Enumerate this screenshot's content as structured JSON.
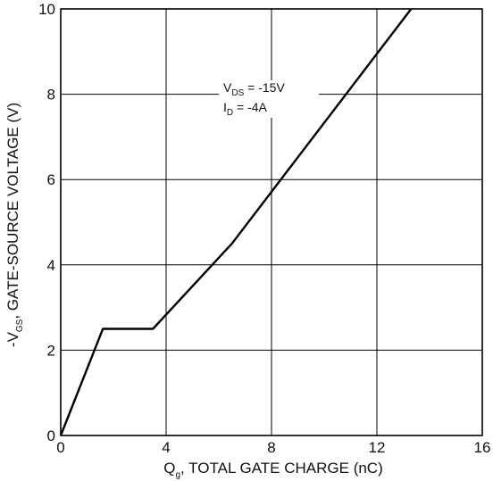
{
  "chart_data": {
    "type": "line",
    "x": [
      0,
      1.6,
      3.5,
      6.5,
      13.3
    ],
    "y": [
      0,
      2.5,
      2.5,
      4.5,
      10
    ],
    "xlim": [
      0,
      16
    ],
    "ylim": [
      0,
      10
    ],
    "xticks": [
      0,
      4,
      8,
      12,
      16
    ],
    "yticks": [
      0,
      2,
      4,
      6,
      8,
      10
    ],
    "grid": true,
    "xlabel": {
      "main": "Q",
      "sub": "g",
      "rest": ", TOTAL GATE CHARGE (nC)"
    },
    "ylabel": {
      "main": "-V",
      "sub": "GS",
      "rest": ", GATE-SOURCE VOLTAGE (V)"
    },
    "annotations": [
      {
        "main": "V",
        "sub": "DS",
        "rest": " = -15V"
      },
      {
        "main": "I",
        "sub": "D",
        "rest": " = -4A"
      }
    ]
  }
}
